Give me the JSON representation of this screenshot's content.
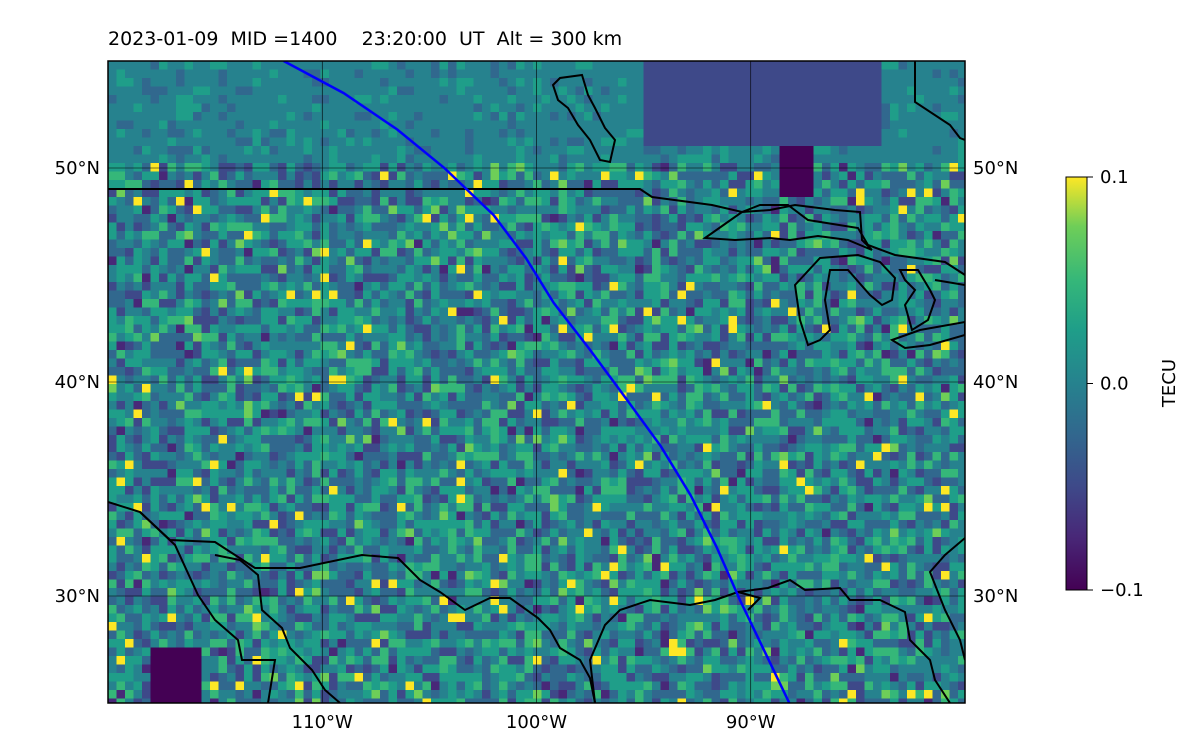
{
  "title": "2023-01-09  MID =1400    23:20:00  UT  Alt = 300 km",
  "map": {
    "lon_range": [
      -120,
      -80
    ],
    "lat_range": [
      25,
      55
    ],
    "lat_ticks": [
      {
        "value": 50,
        "label": "50°N"
      },
      {
        "value": 40,
        "label": "40°N"
      },
      {
        "value": 30,
        "label": "30°N"
      }
    ],
    "lon_ticks": [
      {
        "value": -110,
        "label": "110°W"
      },
      {
        "value": -100,
        "label": "100°W"
      },
      {
        "value": -90,
        "label": "90°W"
      }
    ],
    "grid": true,
    "colormap": "viridis",
    "track_color": "#0000ff",
    "track": [
      [
        -111.8,
        55
      ],
      [
        -109,
        53.5
      ],
      [
        -106.5,
        51.8
      ],
      [
        -104.3,
        50
      ],
      [
        -102,
        47.8
      ],
      [
        -100.5,
        45.8
      ],
      [
        -99.2,
        43.7
      ],
      [
        -97.5,
        41.5
      ],
      [
        -95.8,
        39.2
      ],
      [
        -94.2,
        37
      ],
      [
        -92.8,
        34.7
      ],
      [
        -91.6,
        32.3
      ],
      [
        -90.5,
        29.8
      ],
      [
        -89.3,
        27.3
      ],
      [
        -88.2,
        25
      ]
    ]
  },
  "colorbar": {
    "label": "TECU",
    "min": -0.1,
    "max": 0.1,
    "ticks": [
      {
        "value": 0.1,
        "label": "0.1"
      },
      {
        "value": 0.0,
        "label": "0.0"
      },
      {
        "value": -0.1,
        "label": "−0.1"
      }
    ]
  }
}
